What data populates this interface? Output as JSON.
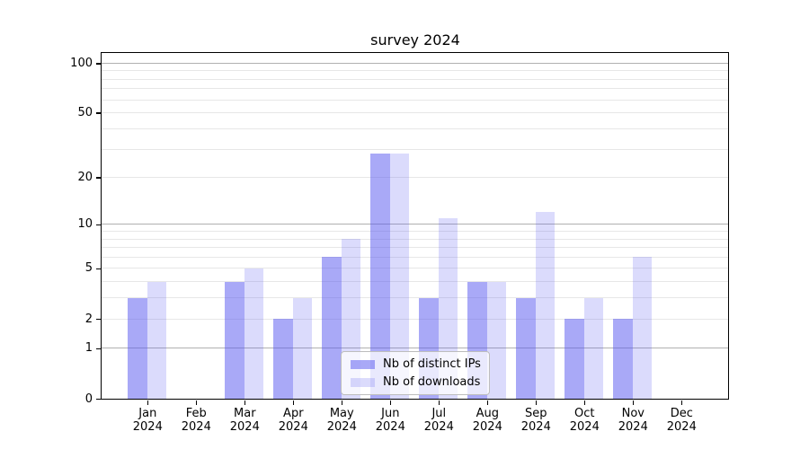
{
  "title": "survey 2024",
  "chart_data": {
    "type": "bar",
    "title": "survey 2024",
    "x_categories": [
      "Jan",
      "Feb",
      "Mar",
      "Apr",
      "May",
      "Jun",
      "Jul",
      "Aug",
      "Sep",
      "Oct",
      "Nov",
      "Dec"
    ],
    "x_year_suffix": "2024",
    "series": [
      {
        "name": "Nb of distinct IPs",
        "color": "#5a5af0",
        "alpha": 0.52,
        "values": [
          3,
          0,
          4,
          2,
          6,
          28,
          3,
          4,
          3,
          2,
          2,
          0
        ]
      },
      {
        "name": "Nb of downloads",
        "color": "#5a5af0",
        "alpha": 0.22,
        "values": [
          4,
          0,
          5,
          3,
          8,
          28,
          11,
          4,
          12,
          3,
          6,
          0
        ]
      }
    ],
    "y_axis": {
      "scale": "log10(value+1)",
      "tick_labels": [
        "100",
        "50",
        "20",
        "10",
        "5",
        "2",
        "1",
        "0"
      ],
      "tick_values": [
        100,
        50,
        20,
        10,
        5,
        2,
        1,
        0
      ],
      "major_gridlines": [
        1,
        10,
        100
      ],
      "minor_gridlines": [
        2,
        3,
        4,
        5,
        6,
        7,
        8,
        9,
        20,
        30,
        40,
        50,
        60,
        70,
        80,
        90
      ],
      "ylim": [
        0,
        115
      ]
    },
    "legend": {
      "position": "lower center",
      "entries": [
        "Nb of distinct IPs",
        "Nb of downloads"
      ]
    },
    "grid": "on"
  },
  "colors": {
    "background": "#ffffff",
    "bar_base": "#5a5af0",
    "grid_major": "#b0b0b0",
    "grid_minor": "#e7e7e7",
    "axis": "#000000",
    "text": "#000000",
    "legend_border": "#bdbdbd"
  }
}
